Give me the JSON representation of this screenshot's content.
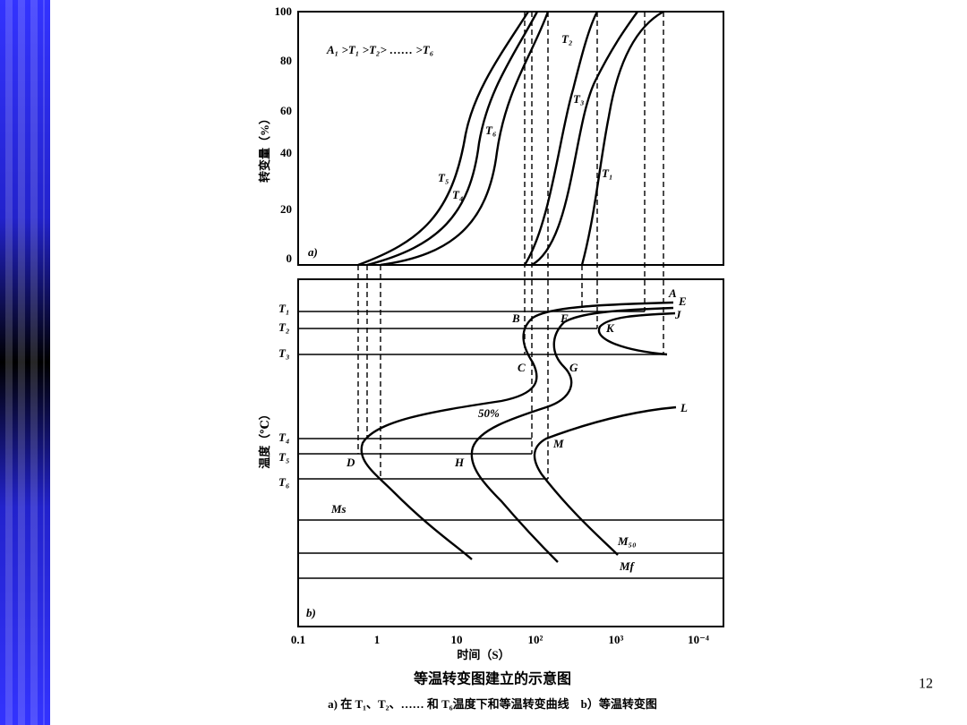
{
  "slide": {
    "page_number": "12"
  },
  "panel_a": {
    "y_axis_title": "转变量（%）",
    "y_labels": [
      "100",
      "80",
      "60",
      "40",
      "20",
      "0"
    ],
    "order_note": "A₁ >T₁ >T₂> …… >T₆",
    "curve_labels": [
      "T₂",
      "T₃",
      "T₁",
      "T₆",
      "T₅",
      "T₄"
    ],
    "panel_label": "a)"
  },
  "panel_b": {
    "y_axis_title": "温度（℃）",
    "temperature_labels": [
      "T₁",
      "T₂",
      "T₃",
      "T₄",
      "T₅",
      "T₆"
    ],
    "point_labels": [
      "A",
      "E",
      "J",
      "B",
      "F",
      "K",
      "C",
      "G",
      "50%",
      "L",
      "M",
      "D",
      "H"
    ],
    "martensite_labels": [
      "Ms",
      "M₅₀",
      "Mf"
    ],
    "panel_label": "b)"
  },
  "x_axis": {
    "labels": [
      "0.1",
      "1",
      "10",
      "10²",
      "10³",
      "10⁻⁴"
    ],
    "title": "时间（S）"
  },
  "caption": {
    "title": "等温转变图建立的示意图",
    "subtitle": "a) 在 T₁、T₂、…… 和 T₆温度下和等温转变曲线　b）等温转变图"
  }
}
